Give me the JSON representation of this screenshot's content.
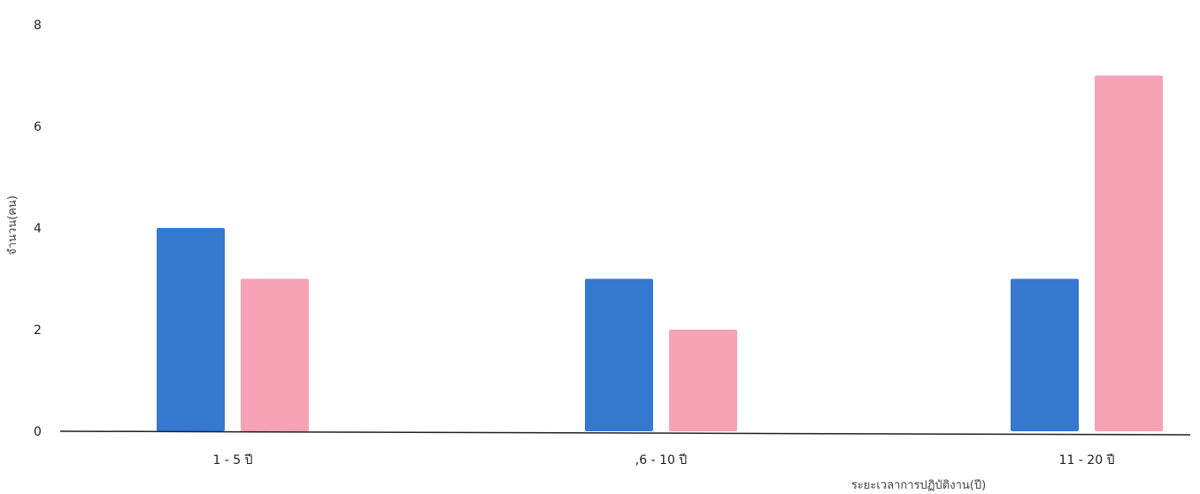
{
  "chart_data": {
    "type": "bar",
    "categories": [
      "1 - 5 ปี",
      ",6 - 10 ปี",
      "11 - 20 ปี"
    ],
    "series": [
      {
        "color": "#3478d0",
        "values": [
          4,
          3,
          3
        ]
      },
      {
        "color": "#f7a3b5",
        "values": [
          3,
          2,
          7
        ]
      }
    ],
    "xlabel": "ระยะเวลาการปฏิบัติงาน(ปี)",
    "ylabel": "จำนวน(คน)",
    "ylim": [
      0,
      8
    ],
    "yticks": [
      0,
      2,
      4,
      6,
      8
    ],
    "grid": false,
    "legend": "none"
  }
}
